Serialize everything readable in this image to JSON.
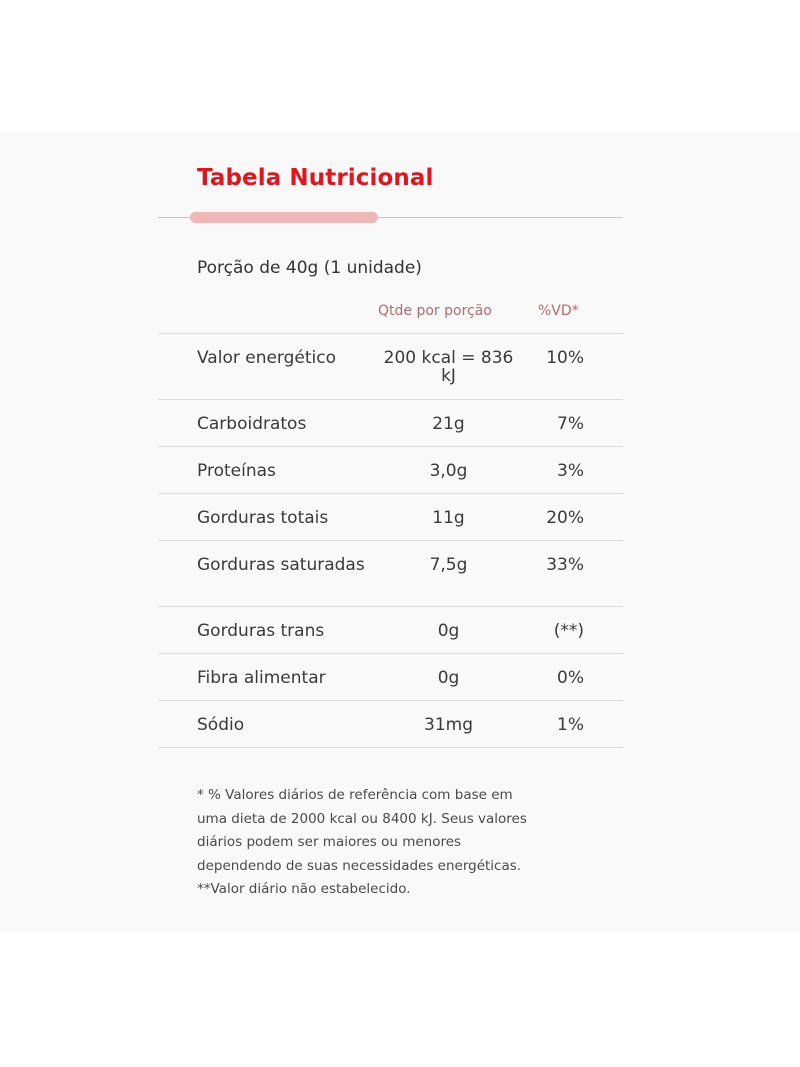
{
  "colors": {
    "title": "#e3141b",
    "accent": "#f1b7b7",
    "header_text": "#b56a6a",
    "text": "#3a3a3a",
    "card_bg": "#f9f9f9"
  },
  "title": "Tabela Nutricional",
  "portion": "Porção de 40g (1 unidade)",
  "columns": {
    "qty": "Qtde por porção",
    "vd": "%VD*"
  },
  "rows": [
    {
      "name": "Valor energético",
      "qty": "200 kcal = 836 kJ",
      "vd": "10%"
    },
    {
      "name": "Carboidratos",
      "qty": "21g",
      "vd": "7%"
    },
    {
      "name": "Proteínas",
      "qty": "3,0g",
      "vd": "3%"
    },
    {
      "name": "Gorduras totais",
      "qty": "11g",
      "vd": "20%"
    },
    {
      "name": "Gorduras saturadas",
      "qty": "7,5g",
      "vd": "33%"
    },
    {
      "name": "Gorduras trans",
      "qty": "0g",
      "vd": "(**)"
    },
    {
      "name": "Fibra alimentar",
      "qty": "0g",
      "vd": "0%"
    },
    {
      "name": "Sódio",
      "qty": "31mg",
      "vd": "1%"
    }
  ],
  "footnote": {
    "lines": [
      "* % Valores diários de referência com base em",
      "uma dieta de 2000 kcal ou 8400 kJ. Seus valores",
      "diários podem ser maiores ou menores",
      "dependendo de suas necessidades energéticas.",
      "**Valor diário não estabelecido."
    ]
  }
}
